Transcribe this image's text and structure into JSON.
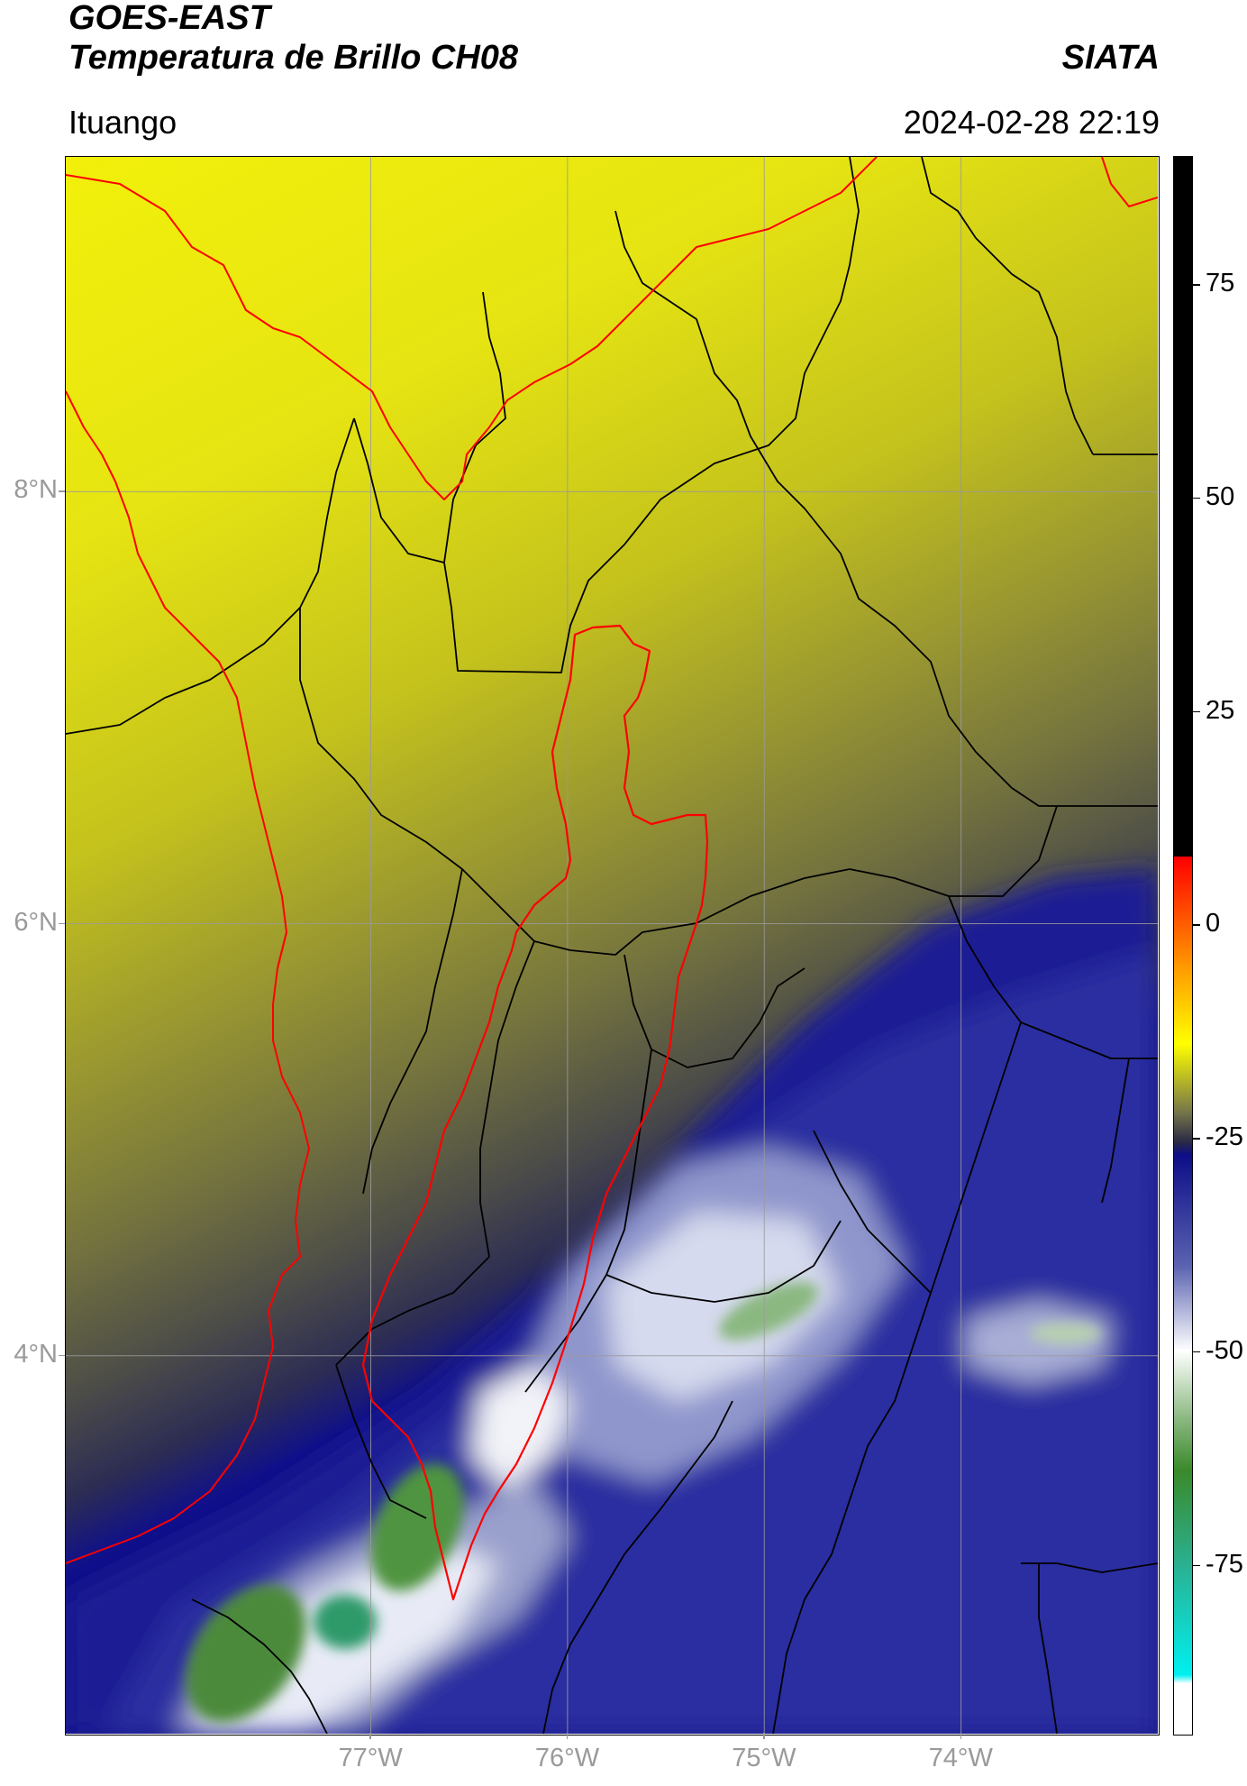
{
  "header": {
    "satellite": "GOES-EAST",
    "product": "Temperatura de Brillo CH08",
    "org": "SIATA",
    "location": "Ituango",
    "datetime": "2024-02-28 22:19"
  },
  "map": {
    "lon_range": [
      -78.55,
      -73.0
    ],
    "lat_range": [
      2.25,
      9.55
    ],
    "lat_gridlines": [
      8,
      6,
      4
    ],
    "lon_gridlines": [
      -77,
      -76,
      -75,
      -74
    ],
    "lat_labels": [
      "8°N",
      "6°N",
      "4°N"
    ],
    "lon_labels": [
      "77°W",
      "76°W",
      "75°W",
      "74°W"
    ],
    "colors": {
      "coastline": "#ff0000",
      "basin_outline": "#ff0000",
      "admin_boundaries": "#000000",
      "gridlines": "#9a9a9a"
    }
  },
  "colorbar": {
    "range": [
      -95,
      90
    ],
    "ticks": [
      75,
      50,
      25,
      0,
      -25,
      -50,
      -75
    ],
    "tick_labels": [
      "75",
      "50",
      "25",
      "0",
      "-25",
      "-50",
      "-75"
    ],
    "stops": [
      {
        "value": 90,
        "color": "#000000"
      },
      {
        "value": 8,
        "color": "#000000"
      },
      {
        "value": 7.9,
        "color": "#ff0000"
      },
      {
        "value": -5,
        "color": "#ff9900"
      },
      {
        "value": -14,
        "color": "#ffff00"
      },
      {
        "value": -22,
        "color": "#76764a"
      },
      {
        "value": -25.5,
        "color": "#2a2a44"
      },
      {
        "value": -27,
        "color": "#0d0d88"
      },
      {
        "value": -40,
        "color": "#5a62b0"
      },
      {
        "value": -50,
        "color": "#ffffff"
      },
      {
        "value": -58,
        "color": "#8ab880"
      },
      {
        "value": -64,
        "color": "#3a8a2a"
      },
      {
        "value": -75,
        "color": "#2ab090"
      },
      {
        "value": -88,
        "color": "#00f0f0"
      },
      {
        "value": -89,
        "color": "#ffffff"
      },
      {
        "value": -95,
        "color": "#ffffff"
      }
    ]
  }
}
